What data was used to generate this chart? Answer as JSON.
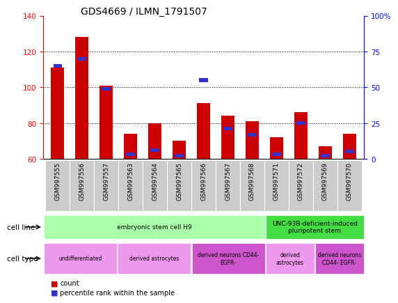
{
  "title": "GDS4669 / ILMN_1791507",
  "samples": [
    "GSM997555",
    "GSM997556",
    "GSM997557",
    "GSM997563",
    "GSM997564",
    "GSM997565",
    "GSM997566",
    "GSM997567",
    "GSM997568",
    "GSM997571",
    "GSM997572",
    "GSM997569",
    "GSM997570"
  ],
  "count_values": [
    111,
    128,
    101,
    74,
    80,
    70,
    91,
    84,
    81,
    72,
    86,
    67,
    74
  ],
  "percentile_values": [
    65,
    70,
    49,
    3,
    6,
    2,
    55,
    21,
    17,
    3,
    25,
    2,
    5
  ],
  "ylim_left": [
    60,
    140
  ],
  "ylim_right": [
    0,
    100
  ],
  "yticks_left": [
    60,
    80,
    100,
    120,
    140
  ],
  "yticks_right": [
    0,
    25,
    50,
    75,
    100
  ],
  "ytick_labels_right": [
    "0",
    "25",
    "50",
    "75",
    "100%"
  ],
  "bar_color_red": "#cc0000",
  "bar_color_blue": "#3333cc",
  "title_fontsize": 10,
  "tick_fontsize": 6.5,
  "cell_line_groups": [
    {
      "label": "embryonic stem cell H9",
      "start": 0,
      "end": 8,
      "color": "#aaffaa"
    },
    {
      "label": "UNC-93B-deficient-induced\npluripotent stem",
      "start": 9,
      "end": 12,
      "color": "#44dd44"
    }
  ],
  "cell_type_groups": [
    {
      "label": "undifferentiated",
      "start": 0,
      "end": 2,
      "color": "#ee99ee"
    },
    {
      "label": "derived astrocytes",
      "start": 3,
      "end": 5,
      "color": "#ee99ee"
    },
    {
      "label": "derived neurons CD44-\nEGFR-",
      "start": 6,
      "end": 8,
      "color": "#cc55cc"
    },
    {
      "label": "derived\nastrocytes",
      "start": 9,
      "end": 10,
      "color": "#ee99ee"
    },
    {
      "label": "derived neurons\nCD44- EGFR-",
      "start": 11,
      "end": 12,
      "color": "#cc55cc"
    }
  ],
  "cell_line_label": "cell line",
  "cell_type_label": "cell type",
  "legend_count_color": "#cc0000",
  "legend_percentile_color": "#3333cc",
  "bar_width": 0.55
}
